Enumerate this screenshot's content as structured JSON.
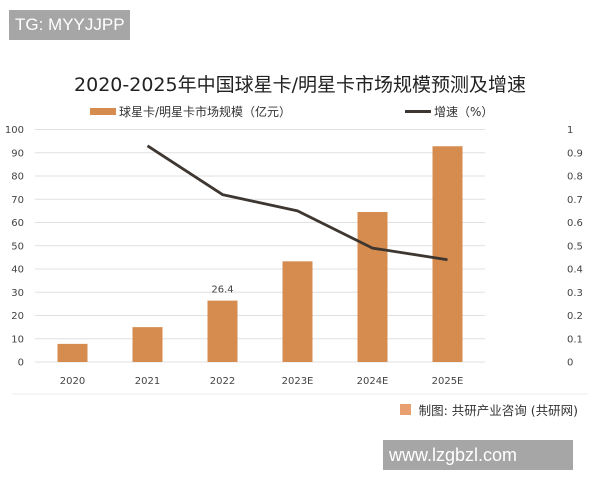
{
  "watermarks": {
    "top_left": "TG: MYYJJPP",
    "bottom_right": "www.lzgbzl.com"
  },
  "source": "制图: 共研产业咨询 (共研网)",
  "colors": {
    "bar": "#d68c4e",
    "line": "#3e3630",
    "grid": "#e0e0e0"
  },
  "chart_data": {
    "type": "bar+line",
    "title": "2020-2025年中国球星卡/明星卡市场规模预测及增速",
    "categories": [
      "2020",
      "2021",
      "2022",
      "2023E",
      "2024E",
      "2025E"
    ],
    "series": [
      {
        "name": "球星卡/明星卡市场规模（亿元）",
        "type": "bar",
        "axis": "left",
        "values": [
          7.8,
          15,
          26.4,
          43.3,
          64.5,
          92.8
        ]
      },
      {
        "name": "增速（%）",
        "type": "line",
        "axis": "right",
        "values": [
          null,
          0.93,
          0.72,
          0.65,
          0.49,
          0.44
        ]
      }
    ],
    "data_labels": [
      {
        "category": "2022",
        "text": "26.4"
      }
    ],
    "y_left": {
      "range": [
        0,
        100
      ],
      "ticks": [
        "0",
        "10",
        "20",
        "30",
        "40",
        "50",
        "60",
        "70",
        "80",
        "90",
        "100"
      ]
    },
    "y_right": {
      "range": [
        0,
        1
      ],
      "ticks": [
        "0",
        "0.1",
        "0.2",
        "0.3",
        "0.4",
        "0.5",
        "0.6",
        "0.7",
        "0.8",
        "0.9",
        "1"
      ]
    },
    "grid": true,
    "legend": "top"
  }
}
